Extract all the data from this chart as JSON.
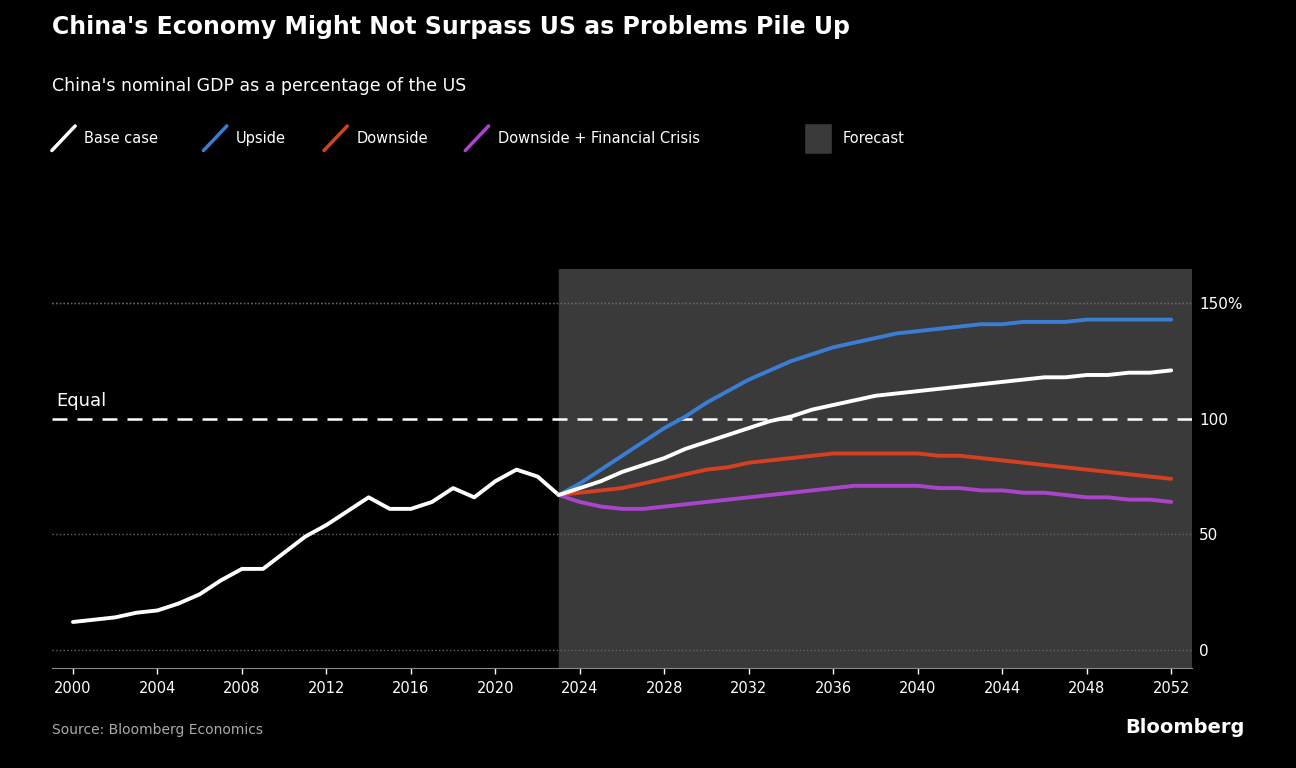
{
  "title": "China's Economy Might Not Surpass US as Problems Pile Up",
  "subtitle": "China's nominal GDP as a percentage of the US",
  "source": "Source: Bloomberg Economics",
  "bloomberg_label": "Bloomberg",
  "background_color": "#000000",
  "text_color": "#ffffff",
  "forecast_start": 2023,
  "forecast_end": 2053,
  "forecast_bg_color": "#3a3a3a",
  "equal_line_y": 100,
  "equal_label": "Equal",
  "ylim": [
    -8,
    165
  ],
  "yticks": [
    0,
    50,
    100,
    150
  ],
  "ytick_labels": [
    "0",
    "50",
    "100",
    "150%"
  ],
  "xlim": [
    1999,
    2053
  ],
  "xticks": [
    2000,
    2004,
    2008,
    2012,
    2016,
    2020,
    2024,
    2028,
    2032,
    2036,
    2040,
    2044,
    2048,
    2052
  ],
  "historical_years": [
    2000,
    2001,
    2002,
    2003,
    2004,
    2005,
    2006,
    2007,
    2008,
    2009,
    2010,
    2011,
    2012,
    2013,
    2014,
    2015,
    2016,
    2017,
    2018,
    2019,
    2020,
    2021,
    2022,
    2023
  ],
  "historical_values": [
    12,
    13,
    14,
    16,
    17,
    20,
    24,
    30,
    35,
    35,
    42,
    49,
    54,
    60,
    66,
    61,
    61,
    64,
    70,
    66,
    73,
    78,
    75,
    67
  ],
  "forecast_years": [
    2023,
    2024,
    2025,
    2026,
    2027,
    2028,
    2029,
    2030,
    2031,
    2032,
    2033,
    2034,
    2035,
    2036,
    2037,
    2038,
    2039,
    2040,
    2041,
    2042,
    2043,
    2044,
    2045,
    2046,
    2047,
    2048,
    2049,
    2050,
    2051,
    2052
  ],
  "base_case": [
    67,
    70,
    73,
    77,
    80,
    83,
    87,
    90,
    93,
    96,
    99,
    101,
    104,
    106,
    108,
    110,
    111,
    112,
    113,
    114,
    115,
    116,
    117,
    118,
    118,
    119,
    119,
    120,
    120,
    121
  ],
  "upside": [
    67,
    72,
    78,
    84,
    90,
    96,
    101,
    107,
    112,
    117,
    121,
    125,
    128,
    131,
    133,
    135,
    137,
    138,
    139,
    140,
    141,
    141,
    142,
    142,
    142,
    143,
    143,
    143,
    143,
    143
  ],
  "downside": [
    67,
    68,
    69,
    70,
    72,
    74,
    76,
    78,
    79,
    81,
    82,
    83,
    84,
    85,
    85,
    85,
    85,
    85,
    84,
    84,
    83,
    82,
    81,
    80,
    79,
    78,
    77,
    76,
    75,
    74
  ],
  "downside_financial": [
    67,
    64,
    62,
    61,
    61,
    62,
    63,
    64,
    65,
    66,
    67,
    68,
    69,
    70,
    71,
    71,
    71,
    71,
    70,
    70,
    69,
    69,
    68,
    68,
    67,
    66,
    66,
    65,
    65,
    64
  ],
  "line_colors": {
    "base_case": "#ffffff",
    "upside": "#3a7dd4",
    "downside": "#d44020",
    "downside_financial": "#aa44cc"
  },
  "line_widths": {
    "base_case": 2.8,
    "upside": 2.8,
    "downside": 2.8,
    "downside_financial": 2.8
  },
  "legend_labels": [
    "Base case",
    "Upside",
    "Downside",
    "Downside + Financial Crisis",
    "Forecast"
  ],
  "grid_color": "#666666",
  "grid_linestyle": "dotted",
  "equal_line_color": "#ffffff",
  "equal_line_style": "--"
}
